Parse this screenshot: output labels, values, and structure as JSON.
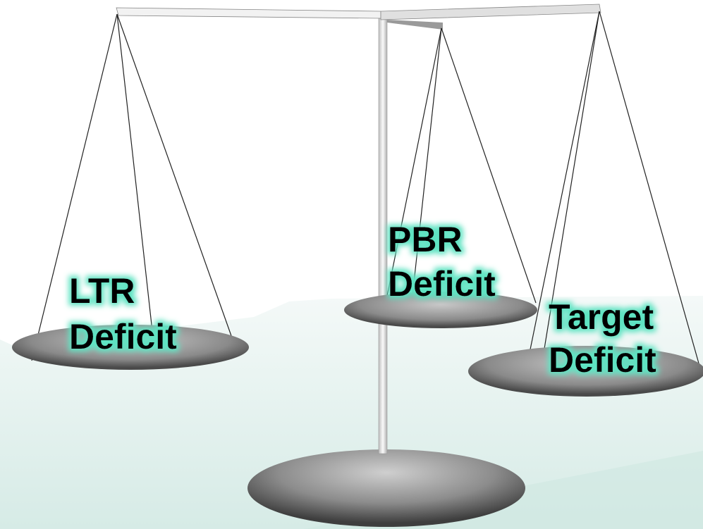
{
  "pans": [
    {
      "lines": [
        "LTR",
        "Deficit"
      ]
    },
    {
      "lines": [
        "PBR",
        "Deficit"
      ]
    },
    {
      "lines": [
        "Target",
        "Deficit"
      ]
    }
  ]
}
